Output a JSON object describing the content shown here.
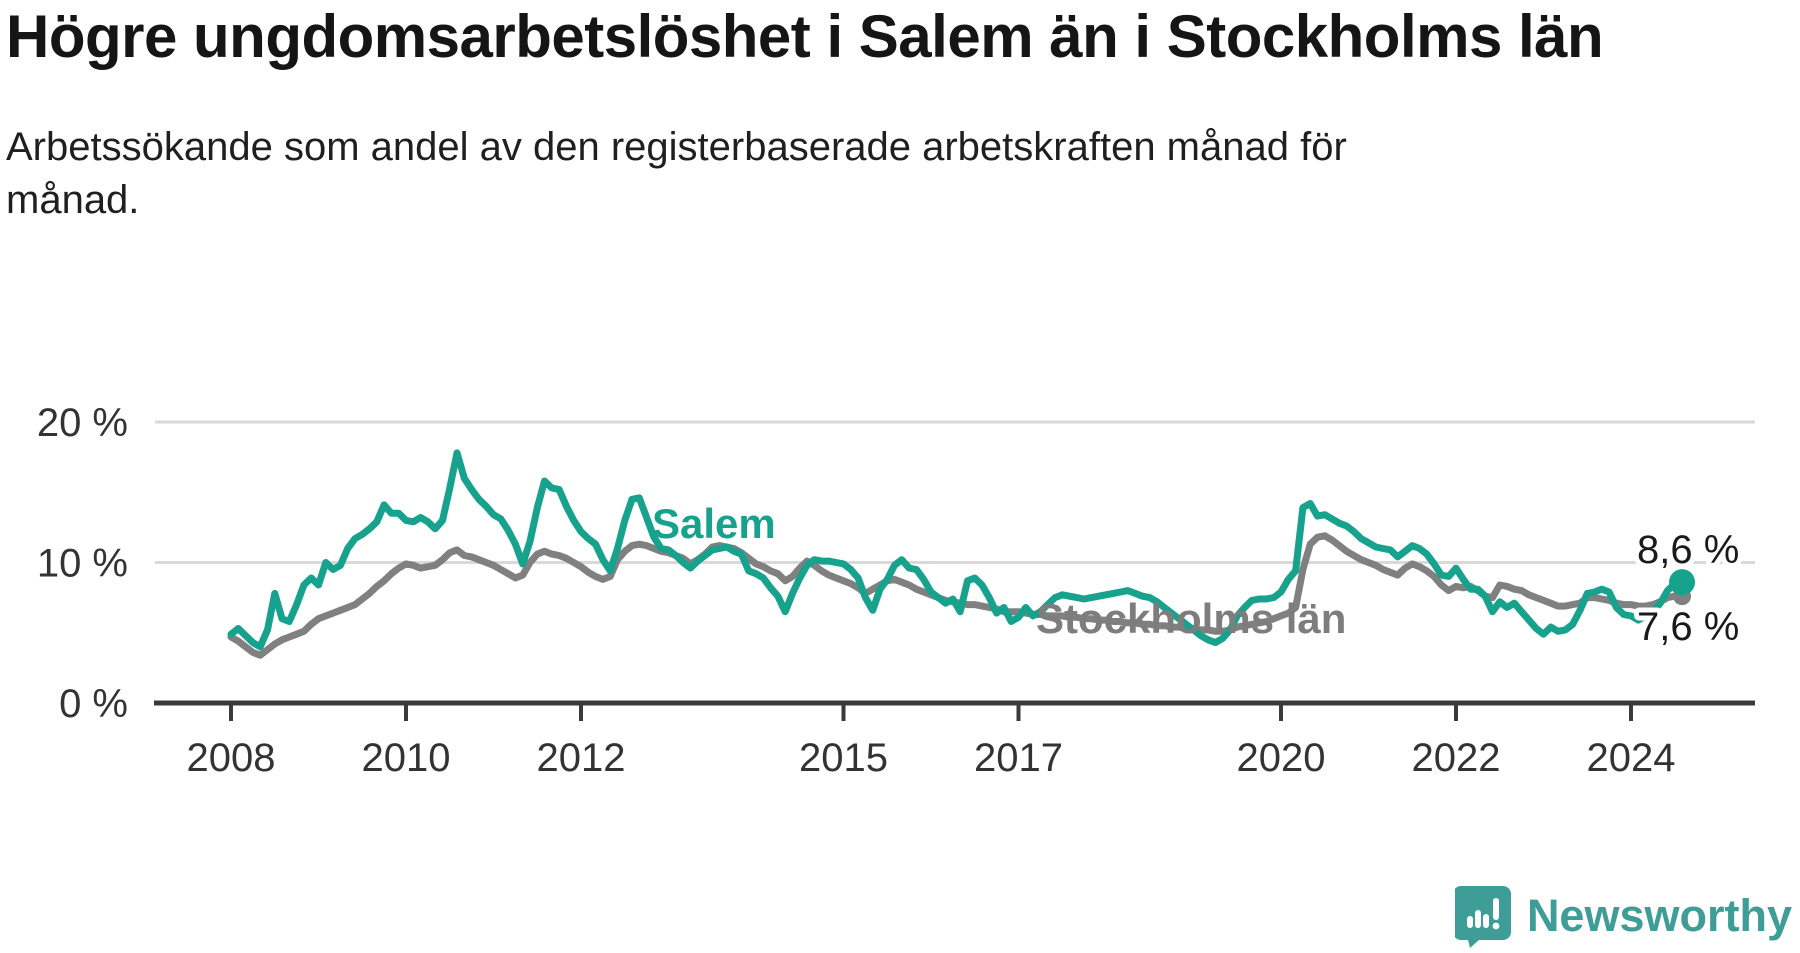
{
  "header": {
    "title": "Högre ungdomsarbetslöshet i Salem än i Stockholms län",
    "subtitle": "Arbetssökande som andel av den registerbaserade arbetskraften månad för månad."
  },
  "footer": {
    "brand": "Newsworthy"
  },
  "chart_data": {
    "type": "line",
    "unit": "%",
    "frequency": "monthly",
    "x_start": {
      "year": 2008,
      "month": 1
    },
    "x_end": {
      "year": 2024,
      "month": 8
    },
    "x_ticks": [
      2008,
      2010,
      2012,
      2015,
      2017,
      2020,
      2022,
      2024
    ],
    "y_ticks": [
      {
        "value": 0,
        "label": "0 %",
        "gridline": false
      },
      {
        "value": 10,
        "label": "10 %",
        "gridline": true
      },
      {
        "value": 20,
        "label": "20 %",
        "gridline": true
      }
    ],
    "ylim": [
      0,
      21.5
    ],
    "grid": "horizontal",
    "legend_position": "inline-labels",
    "series": [
      {
        "name": "Stockholms län",
        "label_text": "Stockholms län",
        "color": "#808080",
        "end_label": "7,6 %",
        "end_value": 7.6,
        "values": [
          4.7,
          4.4,
          4.0,
          3.6,
          3.4,
          3.8,
          4.2,
          4.5,
          4.7,
          4.9,
          5.1,
          5.6,
          6.0,
          6.2,
          6.4,
          6.6,
          6.8,
          7.0,
          7.4,
          7.8,
          8.3,
          8.7,
          9.2,
          9.6,
          9.9,
          9.8,
          9.6,
          9.7,
          9.8,
          10.2,
          10.7,
          10.9,
          10.5,
          10.4,
          10.2,
          10.0,
          9.8,
          9.5,
          9.2,
          8.9,
          9.1,
          10.0,
          10.6,
          10.8,
          10.6,
          10.5,
          10.3,
          10.0,
          9.7,
          9.3,
          9.0,
          8.8,
          9.0,
          10.2,
          10.8,
          11.2,
          11.3,
          11.2,
          11.0,
          10.8,
          10.7,
          10.5,
          10.3,
          9.9,
          10.2,
          10.6,
          11.1,
          11.2,
          11.1,
          11.0,
          10.7,
          10.3,
          9.9,
          9.7,
          9.4,
          9.2,
          8.7,
          9.0,
          9.6,
          10.1,
          9.8,
          9.4,
          9.1,
          8.9,
          8.7,
          8.5,
          8.2,
          7.8,
          8.1,
          8.4,
          8.7,
          8.8,
          8.6,
          8.4,
          8.1,
          7.9,
          7.7,
          7.5,
          7.3,
          7.2,
          7.1,
          7.0,
          7.0,
          6.9,
          6.8,
          6.7,
          6.5,
          6.5,
          6.5,
          6.4,
          6.3,
          6.3,
          6.2,
          6.2,
          6.2,
          6.1,
          6.1,
          6.0,
          6.0,
          5.9,
          5.9,
          5.8,
          5.8,
          5.7,
          5.7,
          5.6,
          5.6,
          5.5,
          5.5,
          5.4,
          5.4,
          5.3,
          5.3,
          5.2,
          5.2,
          5.1,
          5.1,
          5.2,
          5.4,
          5.5,
          5.6,
          5.7,
          5.8,
          6.0,
          6.2,
          6.4,
          6.8,
          9.5,
          11.3,
          11.8,
          11.9,
          11.6,
          11.2,
          10.8,
          10.5,
          10.2,
          10.0,
          9.8,
          9.5,
          9.3,
          9.1,
          9.6,
          9.9,
          9.7,
          9.4,
          9.0,
          8.4,
          8.0,
          8.3,
          8.2,
          8.3,
          8.0,
          7.6,
          7.5,
          8.4,
          8.3,
          8.1,
          8.0,
          7.7,
          7.5,
          7.3,
          7.1,
          6.9,
          6.9,
          7.0,
          7.1,
          7.5,
          7.5,
          7.4,
          7.3,
          7.1,
          7.0,
          7.0,
          6.9,
          6.9,
          7.0,
          7.2,
          7.5,
          7.6,
          7.6
        ]
      },
      {
        "name": "Salem",
        "label_text": "Salem",
        "color": "#17a28e",
        "end_label": "8,6 %",
        "end_value": 8.6,
        "values": [
          4.9,
          5.3,
          4.8,
          4.3,
          4.0,
          5.2,
          7.8,
          6.0,
          5.8,
          7.0,
          8.4,
          8.9,
          8.4,
          10.0,
          9.5,
          9.8,
          11.0,
          11.7,
          12.0,
          12.4,
          12.9,
          14.1,
          13.5,
          13.5,
          13.0,
          12.9,
          13.2,
          12.9,
          12.4,
          13.0,
          15.3,
          17.8,
          16.0,
          15.2,
          14.5,
          14.0,
          13.4,
          13.1,
          12.3,
          11.3,
          9.9,
          11.5,
          13.9,
          15.8,
          15.3,
          15.2,
          14.0,
          13.0,
          12.2,
          11.7,
          11.3,
          10.2,
          9.4,
          11.0,
          13.0,
          14.5,
          14.6,
          13.2,
          11.8,
          11.0,
          10.9,
          10.5,
          10.0,
          9.6,
          10.1,
          10.5,
          10.9,
          11.0,
          11.1,
          10.8,
          10.6,
          9.4,
          9.2,
          8.9,
          8.2,
          7.6,
          6.5,
          7.8,
          8.9,
          9.8,
          10.2,
          10.1,
          10.1,
          10.0,
          9.9,
          9.5,
          8.9,
          7.5,
          6.6,
          8.1,
          8.8,
          9.8,
          10.2,
          9.6,
          9.5,
          8.8,
          7.9,
          7.5,
          7.1,
          7.4,
          6.5,
          8.7,
          8.9,
          8.4,
          7.5,
          6.4,
          6.8,
          5.8,
          6.1,
          6.8,
          6.2,
          6.5,
          7.0,
          7.5,
          7.7,
          7.6,
          7.5,
          7.4,
          7.5,
          7.6,
          7.7,
          7.8,
          7.9,
          8.0,
          7.8,
          7.6,
          7.5,
          7.2,
          6.8,
          6.4,
          6.0,
          5.6,
          5.2,
          4.8,
          4.5,
          4.3,
          4.6,
          5.2,
          6.2,
          6.8,
          7.3,
          7.4,
          7.4,
          7.5,
          7.9,
          8.8,
          9.4,
          13.9,
          14.2,
          13.3,
          13.4,
          13.1,
          12.8,
          12.6,
          12.2,
          11.7,
          11.4,
          11.1,
          11.0,
          10.9,
          10.4,
          10.8,
          11.2,
          11.0,
          10.6,
          9.9,
          9.1,
          9.0,
          9.6,
          8.8,
          8.1,
          8.1,
          7.6,
          6.5,
          7.2,
          6.8,
          7.1,
          6.5,
          5.9,
          5.3,
          4.9,
          5.4,
          5.1,
          5.2,
          5.6,
          6.6,
          7.8,
          7.9,
          8.1,
          7.9,
          6.8,
          6.3,
          6.2,
          5.9,
          6.2,
          6.5,
          7.1,
          8.0,
          8.5,
          8.6
        ]
      }
    ]
  }
}
